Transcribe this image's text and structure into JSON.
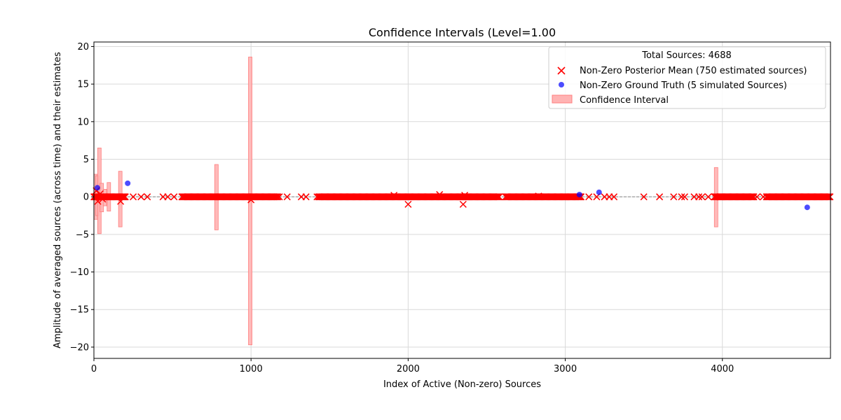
{
  "chart_data": {
    "type": "scatter",
    "title": "Confidence Intervals (Level=1.00",
    "xlabel": "Index of Active (Non-zero) Sources",
    "ylabel": "Amplitude of averaged sources (across time) and their estimates",
    "xlim": [
      0,
      4688
    ],
    "ylim": [
      -21.5,
      20.6
    ],
    "xticks": [
      0,
      1000,
      2000,
      3000,
      4000
    ],
    "yticks": [
      -20,
      -15,
      -10,
      -5,
      0,
      5,
      10,
      15,
      20
    ],
    "grid": true,
    "legend_placement": "top-right",
    "legend_title": "Total Sources: 4688",
    "zero_line": true,
    "colors": {
      "estimate": "#ff0000",
      "ground_truth": "#0000ff",
      "interval_fill": "#ffb3b3",
      "interval_edge": "#ff7f7f",
      "grid": "#d9d9d9",
      "zero_line": "#888888"
    },
    "series": [
      {
        "name": "Non-Zero Posterior Mean (750 estimated sources)",
        "marker": "x",
        "dense_ranges": [
          [
            0,
            200
          ],
          [
            560,
            1170
          ],
          [
            1430,
            2580
          ],
          [
            2620,
            3100
          ],
          [
            3950,
            4200
          ],
          [
            4280,
            4688
          ]
        ],
        "points": [
          [
            15,
            0.8
          ],
          [
            25,
            -0.6
          ],
          [
            40,
            0.4
          ],
          [
            55,
            -0.3
          ],
          [
            170,
            -0.6
          ],
          [
            250,
            0
          ],
          [
            300,
            0
          ],
          [
            340,
            0
          ],
          [
            440,
            0
          ],
          [
            470,
            0
          ],
          [
            510,
            0
          ],
          [
            1000,
            -0.4
          ],
          [
            1180,
            0
          ],
          [
            1230,
            0
          ],
          [
            1320,
            0
          ],
          [
            1350,
            0
          ],
          [
            1420,
            0
          ],
          [
            1910,
            0.2
          ],
          [
            2000,
            -1.0
          ],
          [
            2200,
            0.3
          ],
          [
            2350,
            -1.0
          ],
          [
            2360,
            0.2
          ],
          [
            2830,
            0.1
          ],
          [
            3100,
            0
          ],
          [
            3150,
            0
          ],
          [
            3200,
            0
          ],
          [
            3250,
            0
          ],
          [
            3280,
            0
          ],
          [
            3310,
            0
          ],
          [
            3500,
            0
          ],
          [
            3600,
            0
          ],
          [
            3690,
            0
          ],
          [
            3740,
            0
          ],
          [
            3760,
            0
          ],
          [
            3820,
            0
          ],
          [
            3850,
            0
          ],
          [
            3870,
            0
          ],
          [
            3910,
            0
          ],
          [
            3950,
            0
          ],
          [
            4220,
            0
          ],
          [
            4260,
            0
          ]
        ]
      },
      {
        "name": "Non-Zero Ground Truth (5 simulated Sources)",
        "marker": "o",
        "points": [
          [
            22,
            1.2
          ],
          [
            215,
            1.8
          ],
          [
            3090,
            0.3
          ],
          [
            3215,
            0.6
          ],
          [
            4540,
            -1.4
          ]
        ]
      }
    ],
    "intervals": {
      "name": "Confidence Interval",
      "items": [
        [
          12,
          -3.0,
          3.0
        ],
        [
          22,
          -2.5,
          2.8
        ],
        [
          35,
          -4.9,
          6.5
        ],
        [
          50,
          -2.0,
          1.8
        ],
        [
          70,
          -1.2,
          1.0
        ],
        [
          95,
          -1.9,
          1.9
        ],
        [
          168,
          -4.0,
          3.4
        ],
        [
          780,
          -4.4,
          4.3
        ],
        [
          995,
          -19.7,
          18.6
        ],
        [
          3960,
          -4.0,
          3.9
        ]
      ]
    }
  }
}
